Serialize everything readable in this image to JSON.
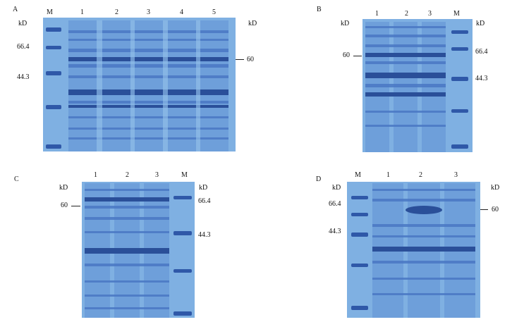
{
  "figure": {
    "panels": [
      {
        "id": "A",
        "letter": "A",
        "lanes": [
          "M",
          "1",
          "2",
          "3",
          "4",
          "5"
        ],
        "unit_left": "kD",
        "unit_right": "kD",
        "markers": [
          "66.4",
          "44.3"
        ],
        "target": "60"
      },
      {
        "id": "B",
        "letter": "B",
        "lanes": [
          "1",
          "2",
          "3",
          "M"
        ],
        "unit_left": "kD",
        "unit_right": "kD",
        "markers": [
          "66.4",
          "44.3"
        ],
        "target": "60"
      },
      {
        "id": "C",
        "letter": "C",
        "lanes": [
          "1",
          "2",
          "3",
          "M"
        ],
        "unit_left": "kD",
        "unit_right": "kD",
        "markers": [
          "66.4",
          "44.3"
        ],
        "target": "60"
      },
      {
        "id": "D",
        "letter": "D",
        "lanes": [
          "M",
          "1",
          "2",
          "3"
        ],
        "unit_left": "kD",
        "unit_right": "kD",
        "markers": [
          "66.4",
          "44.3"
        ],
        "target": "60"
      }
    ]
  },
  "colors": {
    "gel_background": "#7fb0e2",
    "band_dark": "#2a4f99",
    "band_mid": "#4a78c4"
  }
}
